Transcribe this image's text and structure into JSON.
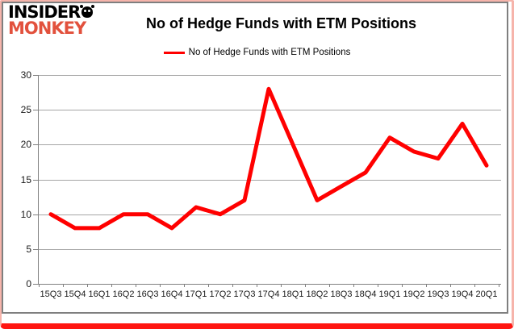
{
  "branding": {
    "logo_line1": "INSIDER",
    "logo_line2": "MONKEY",
    "logo_color": "#e2513d"
  },
  "header": {
    "title": "No of Hedge Funds with ETM Positions"
  },
  "legend": {
    "label": "No of Hedge Funds with ETM Positions"
  },
  "chart_data": {
    "type": "line",
    "title": "No of Hedge Funds with ETM Positions",
    "categories": [
      "15Q3",
      "15Q4",
      "16Q1",
      "16Q2",
      "16Q3",
      "16Q4",
      "17Q1",
      "17Q2",
      "17Q3",
      "17Q4",
      "18Q1",
      "18Q2",
      "18Q3",
      "18Q4",
      "19Q1",
      "19Q2",
      "19Q3",
      "19Q4",
      "20Q1"
    ],
    "series": [
      {
        "name": "No of Hedge Funds with ETM Positions",
        "color": "#ff0000",
        "values": [
          10,
          8,
          8,
          10,
          10,
          8,
          11,
          10,
          12,
          28,
          20,
          12,
          14,
          16,
          21,
          19,
          18,
          23,
          17
        ]
      }
    ],
    "xlabel": "",
    "ylabel": "",
    "ylim": [
      0,
      30
    ],
    "yticks": [
      0,
      5,
      10,
      15,
      20,
      25,
      30
    ],
    "grid": true,
    "legend_position": "top-center"
  },
  "colors": {
    "line": "#ff0000",
    "grid": "#a6a6a6",
    "axis": "#808080",
    "frame": "#7f7f7f",
    "outer_border": "#f6b4ab",
    "bottom_border": "#ff1612",
    "background": "#ffffff",
    "text": "#000000"
  }
}
